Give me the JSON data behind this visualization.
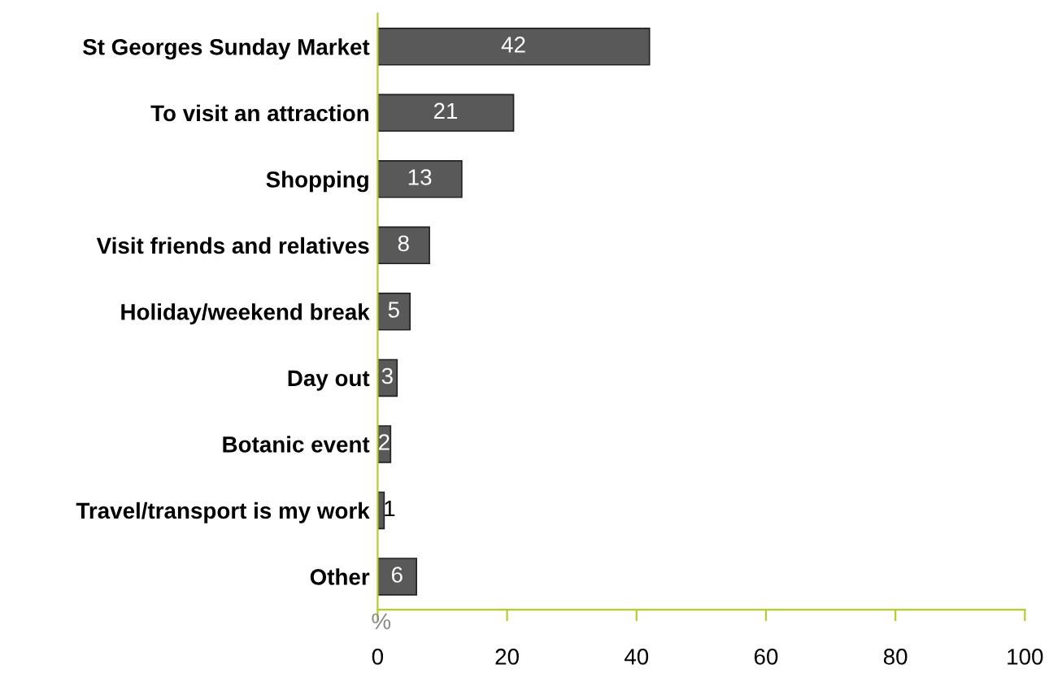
{
  "chart_data": {
    "type": "bar",
    "orientation": "horizontal",
    "xlabel": "%",
    "categories": [
      "St Georges Sunday Market",
      "To visit an attraction",
      "Shopping",
      "Visit friends and relatives",
      "Holiday/weekend break",
      "Day out",
      "Botanic event",
      "Travel/transport is my work",
      "Other"
    ],
    "values": [
      42,
      21,
      13,
      8,
      5,
      3,
      2,
      1,
      6
    ],
    "color": "#595959",
    "xlim": [
      0,
      100
    ],
    "xticks": [
      0,
      20,
      40,
      60,
      80,
      100
    ],
    "data_labels": true,
    "grid": false,
    "legend": false
  }
}
